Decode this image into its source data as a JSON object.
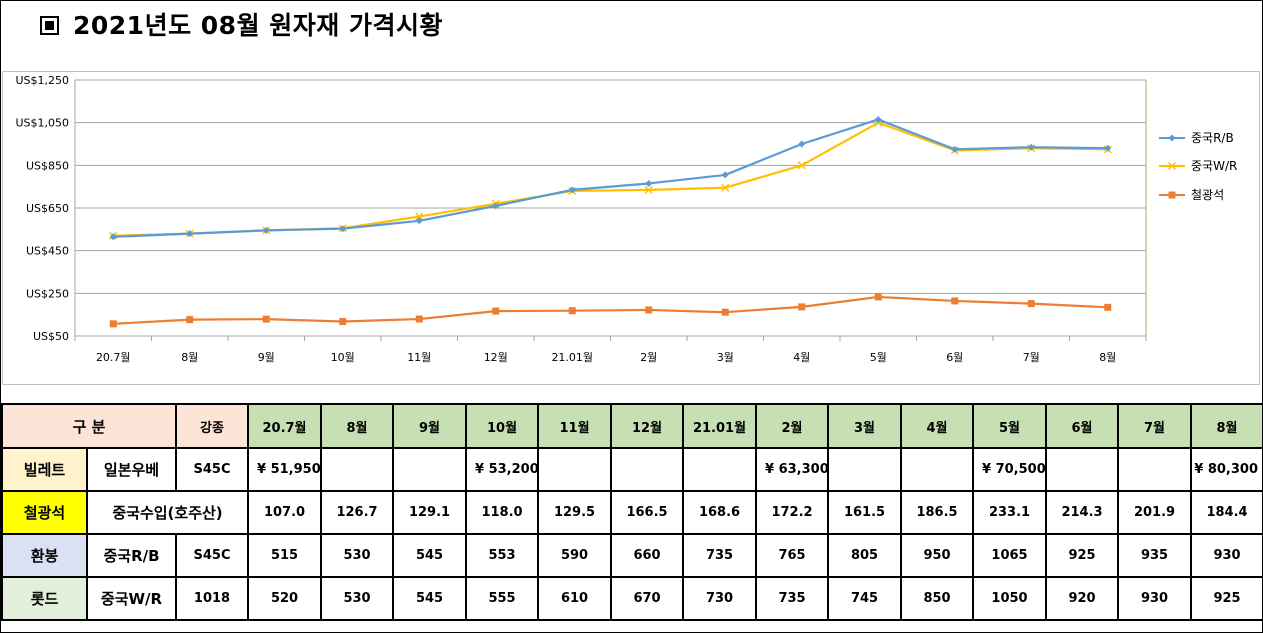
{
  "title": "2021년도 08월 원자재 가격시황",
  "colors": {
    "rb": "#5b9bd5",
    "wr": "#ffc000",
    "ore": "#ed7d31",
    "grid": "#a6a6a6",
    "plot_border": "#c6c39a"
  },
  "chart_data": {
    "type": "line",
    "categories": [
      "20.7월",
      "8월",
      "9월",
      "10월",
      "11월",
      "12월",
      "21.01월",
      "2월",
      "3월",
      "4월",
      "5월",
      "6월",
      "7월",
      "8월"
    ],
    "ylim": [
      50,
      1250
    ],
    "yticks": [
      50,
      250,
      450,
      650,
      850,
      1050,
      1250
    ],
    "ytick_labels": [
      "US$50",
      "US$250",
      "US$450",
      "US$650",
      "US$850",
      "US$1,050",
      "US$1,250"
    ],
    "grid": true,
    "legend_position": "right",
    "series": [
      {
        "name": "중국R/B",
        "marker": "diamond",
        "color": "#5b9bd5",
        "values": [
          515,
          530,
          545,
          553,
          590,
          660,
          735,
          765,
          805,
          950,
          1065,
          925,
          935,
          930
        ]
      },
      {
        "name": "중국W/R",
        "marker": "x",
        "color": "#ffc000",
        "values": [
          520,
          530,
          545,
          555,
          610,
          670,
          730,
          735,
          745,
          850,
          1050,
          920,
          930,
          925
        ]
      },
      {
        "name": "철광석",
        "marker": "square",
        "color": "#ed7d31",
        "values": [
          107.0,
          126.7,
          129.1,
          118.0,
          129.5,
          166.5,
          168.6,
          172.2,
          161.5,
          186.5,
          233.1,
          214.3,
          201.9,
          184.4
        ]
      }
    ]
  },
  "table": {
    "header": {
      "label": "구 분",
      "grade": "강종",
      "months": [
        "20.7월",
        "8월",
        "9월",
        "10월",
        "11월",
        "12월",
        "21.01월",
        "2월",
        "3월",
        "4월",
        "5월",
        "6월",
        "7월",
        "8월"
      ]
    },
    "billet": {
      "label": "빌레트",
      "origin": "일본우베",
      "grade": "S45C",
      "values": [
        "¥ 51,950",
        "",
        "",
        "¥ 53,200",
        "",
        "",
        "",
        "¥ 63,300",
        "",
        "",
        "¥ 70,500",
        "",
        "",
        "¥ 80,300"
      ]
    },
    "ore": {
      "label": "철광석",
      "origin": "중국수입(호주산)",
      "values": [
        "107.0",
        "126.7",
        "129.1",
        "118.0",
        "129.5",
        "166.5",
        "168.6",
        "172.2",
        "161.5",
        "186.5",
        "233.1",
        "214.3",
        "201.9",
        "184.4"
      ]
    },
    "bar": {
      "label": "환봉",
      "origin": "중국R/B",
      "grade": "S45C",
      "values": [
        "515",
        "530",
        "545",
        "553",
        "590",
        "660",
        "735",
        "765",
        "805",
        "950",
        "1065",
        "925",
        "935",
        "930"
      ]
    },
    "rod": {
      "label": "롯드",
      "origin": "중국W/R",
      "grade": "1018",
      "values": [
        "520",
        "530",
        "545",
        "555",
        "610",
        "670",
        "730",
        "735",
        "745",
        "850",
        "1050",
        "920",
        "930",
        "925"
      ]
    }
  }
}
